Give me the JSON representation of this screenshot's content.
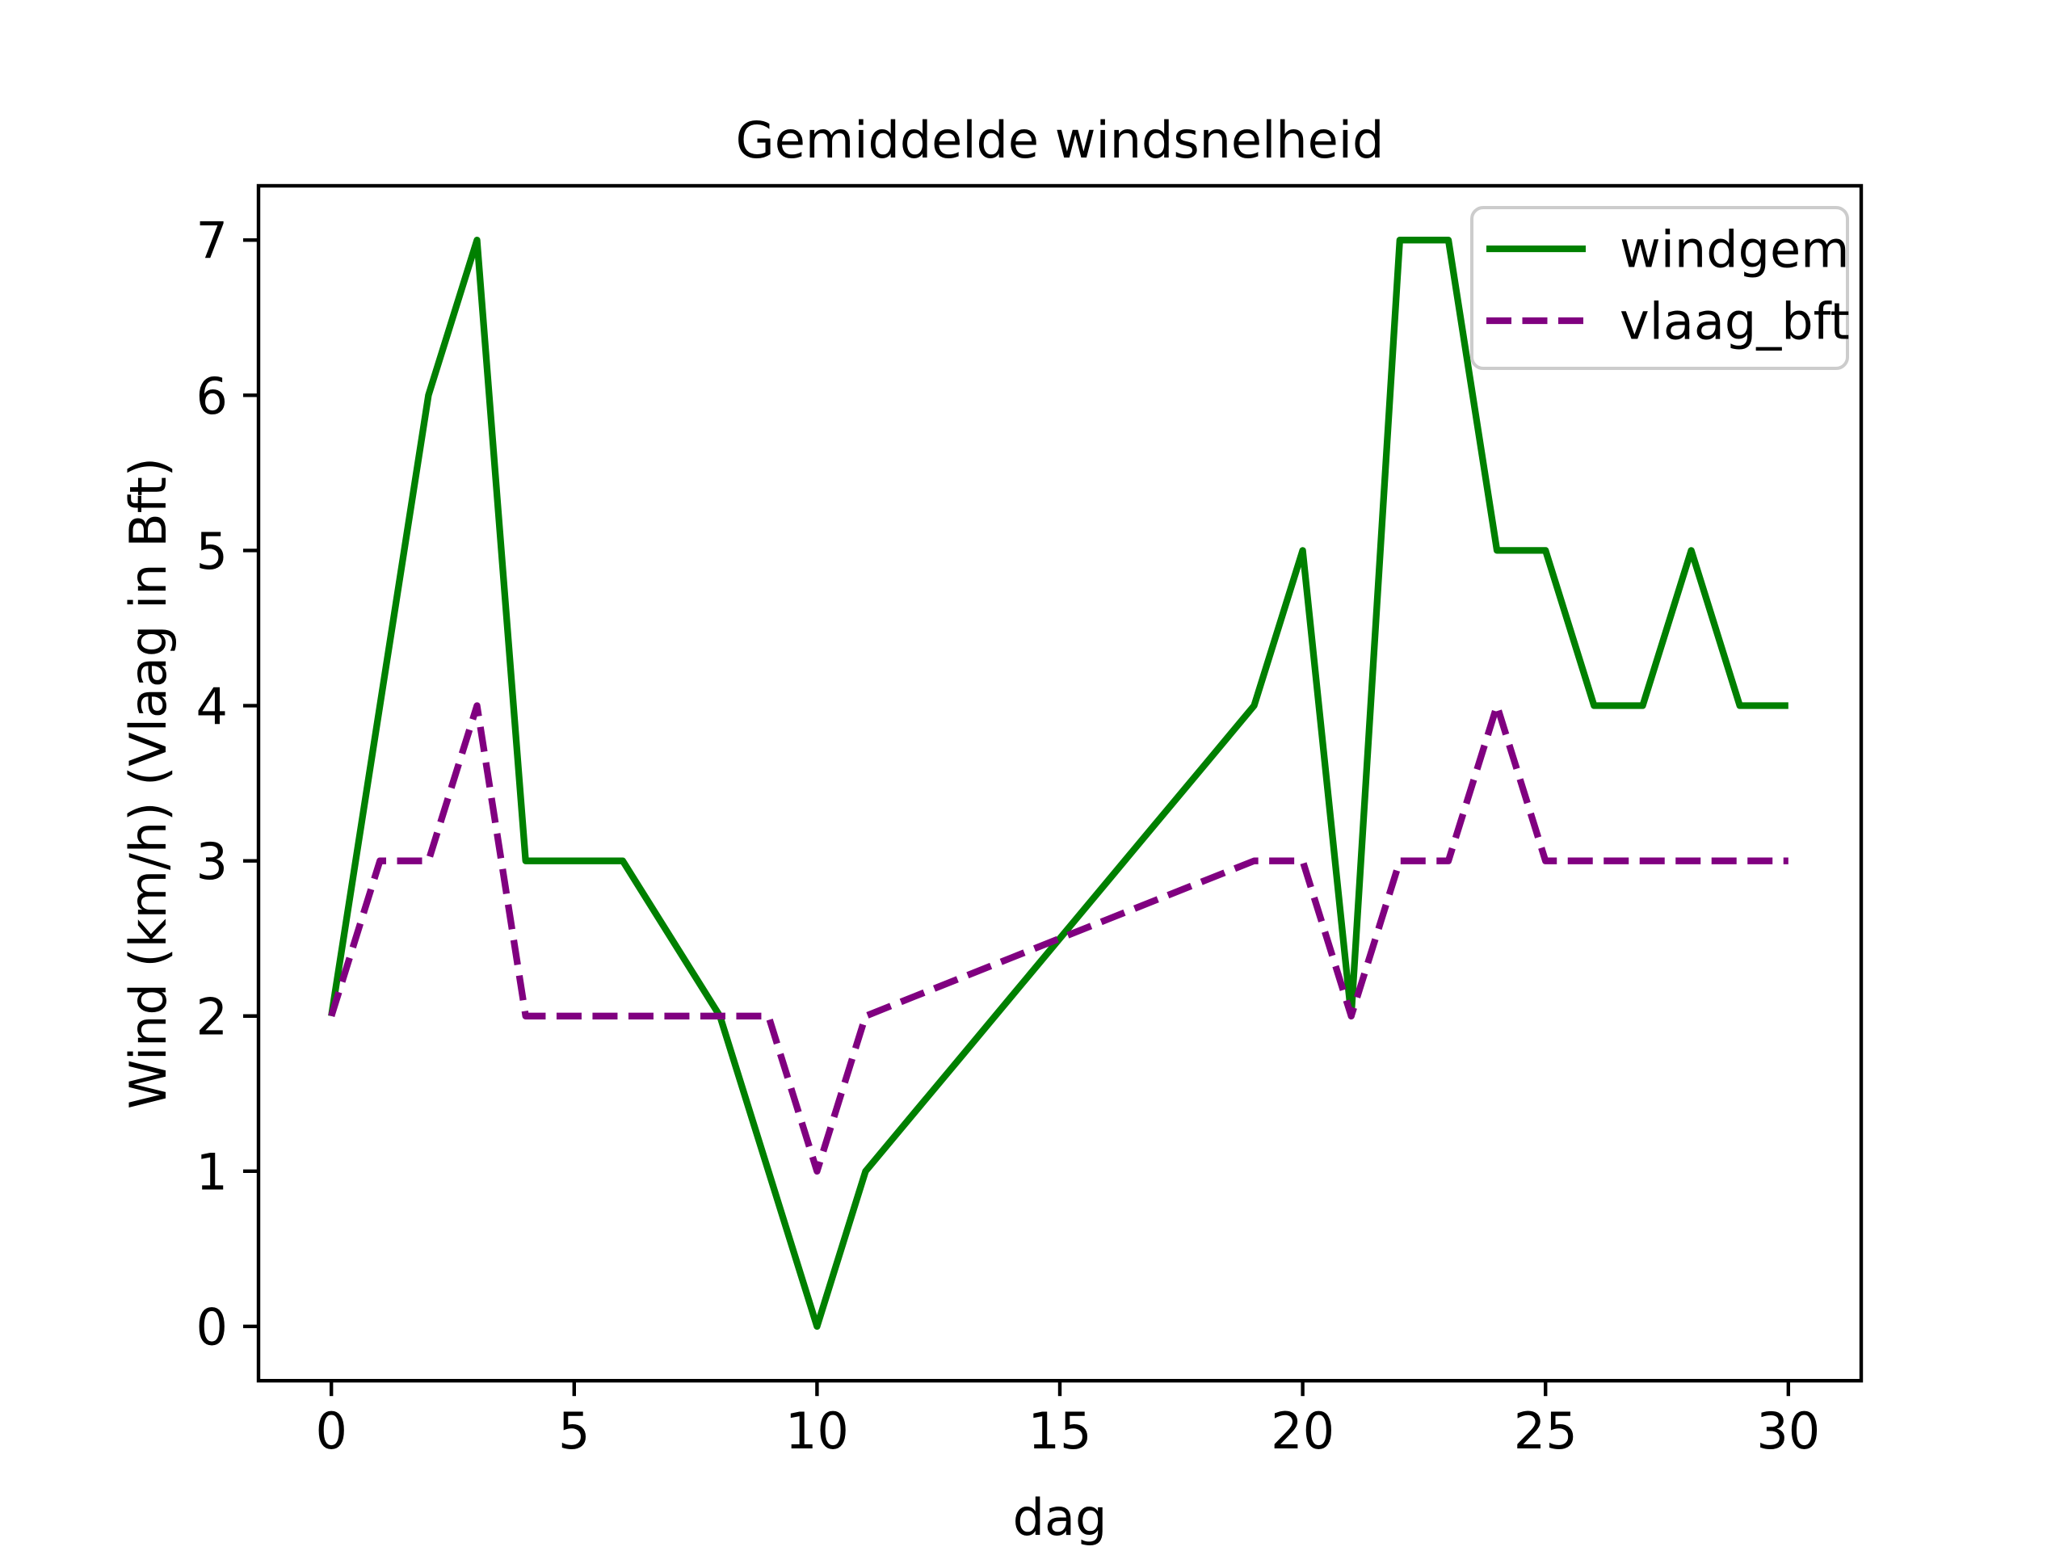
{
  "figure": {
    "title": "Gemiddelde windsnelheid",
    "xlabel": "dag",
    "ylabel": "Wind (km/h) (Vlaag in Bft)",
    "background_color": "#ffffff",
    "text_color": "#000000",
    "legend_border_color": "#cccccc"
  },
  "chart_data": {
    "type": "line",
    "title": "Gemiddelde windsnelheid",
    "xlabel": "dag",
    "ylabel": "Wind (km/h) (Vlaag in Bft)",
    "x": [
      0,
      1,
      2,
      3,
      4,
      5,
      6,
      7,
      8,
      9,
      10,
      11,
      12,
      13,
      14,
      15,
      16,
      17,
      18,
      19,
      20,
      21,
      22,
      23,
      24,
      25,
      26,
      27,
      28,
      29,
      30
    ],
    "series": [
      {
        "name": "windgem",
        "color": "#008000",
        "style": "solid",
        "values": [
          2,
          4,
          6,
          7,
          3,
          3,
          3,
          2.5,
          2,
          1,
          0,
          1,
          1.375,
          1.75,
          2.125,
          2.5,
          2.875,
          3.25,
          3.625,
          4,
          5,
          2,
          7,
          7,
          5,
          5,
          4,
          4,
          5,
          4,
          4
        ]
      },
      {
        "name": "vlaag_bft",
        "color": "#800080",
        "style": "dashed",
        "values": [
          2,
          3,
          3,
          4,
          2,
          2,
          2,
          2,
          2,
          2,
          1,
          2,
          2.125,
          2.25,
          2.375,
          2.5,
          2.625,
          2.75,
          2.875,
          3,
          3,
          2,
          3,
          3,
          4,
          3,
          3,
          3,
          3,
          3,
          3
        ]
      }
    ],
    "x_ticks": [
      0,
      5,
      10,
      15,
      20,
      25,
      30
    ],
    "y_ticks": [
      0,
      1,
      2,
      3,
      4,
      5,
      6,
      7
    ],
    "xlim": [
      -1.5,
      31.5
    ],
    "ylim": [
      -0.35,
      7.35
    ],
    "grid": false,
    "legend_position": "upper right"
  }
}
